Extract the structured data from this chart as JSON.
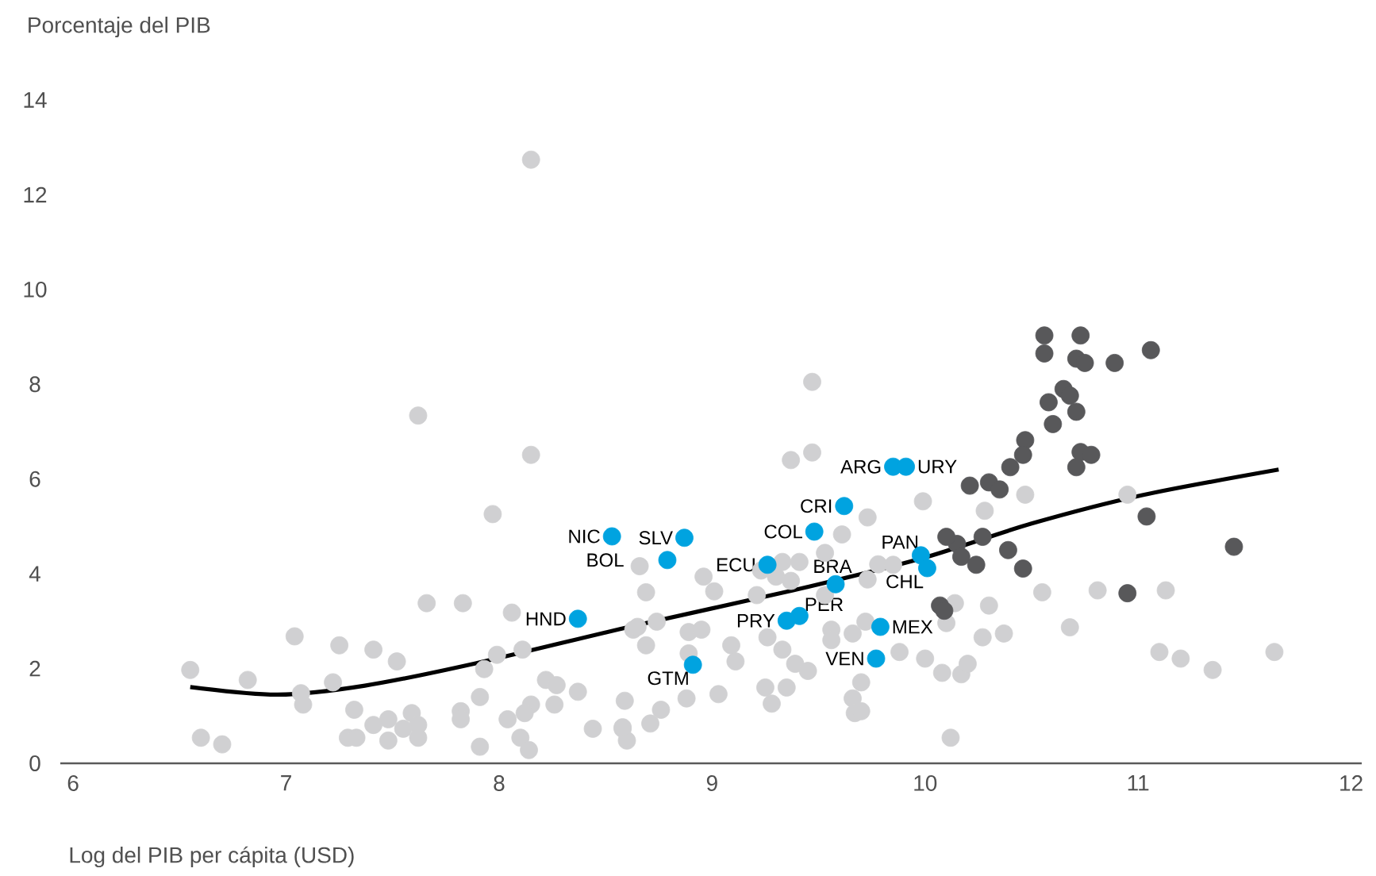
{
  "chart_data": {
    "type": "scatter",
    "xlabel": "Log del PIB per cápita (USD)",
    "ylabel": "Porcentaje del PIB",
    "xlim": [
      5.94,
      12.05
    ],
    "xticks": [
      6,
      7,
      8,
      9,
      10,
      11,
      12
    ],
    "ylim": [
      0,
      14
    ],
    "yticks": [
      0,
      2,
      4,
      6,
      8,
      10,
      12,
      14
    ],
    "grid": false,
    "series": [
      {
        "color": "#d0d0d2",
        "marker": "circle",
        "x": [
          8.15,
          7.62,
          8.15,
          7.97,
          7.66,
          7.83,
          8.06,
          7.04,
          7.25,
          7.41,
          7.52,
          6.55,
          6.82,
          7.22,
          7.99,
          8.11,
          7.93,
          7.07,
          7.08,
          7.32,
          7.91,
          8.22,
          8.27,
          8.37,
          8.59,
          8.26,
          8.15,
          8.12,
          8.04,
          7.82,
          7.82,
          7.59,
          7.62,
          7.55,
          7.48,
          7.41,
          7.48,
          7.62,
          7.29,
          7.33,
          6.6,
          6.7,
          7.91,
          8.1,
          8.14,
          8.44,
          8.58,
          8.6,
          8.63,
          9.47,
          9.37,
          9.47,
          9.99,
          9.73,
          9.61,
          9.53,
          9.78,
          9.33,
          9.41,
          9.23,
          9.3,
          9.37,
          8.96,
          9.01,
          9.21,
          8.69,
          8.66,
          9.53,
          9.73,
          9.85,
          8.65,
          8.74,
          8.69,
          8.89,
          8.95,
          8.89,
          9.09,
          9.11,
          9.26,
          9.33,
          9.39,
          9.45,
          9.56,
          9.56,
          9.66,
          9.72,
          9.88,
          10.0,
          10.08,
          10.17,
          10.2,
          10.27,
          10.37,
          10.1,
          10.14,
          10.3,
          9.03,
          9.25,
          9.35,
          9.28,
          9.7,
          9.66,
          9.67,
          9.7,
          8.88,
          8.76,
          8.71,
          8.58,
          10.12,
          10.28,
          10.47,
          10.55,
          10.95,
          10.81,
          11.13,
          10.68,
          11.1,
          11.2,
          11.35,
          11.64
        ],
        "values": [
          12.74,
          7.34,
          6.51,
          5.26,
          3.38,
          3.38,
          3.18,
          2.68,
          2.49,
          2.4,
          2.15,
          1.97,
          1.76,
          1.71,
          2.29,
          2.4,
          1.99,
          1.48,
          1.24,
          1.13,
          1.4,
          1.76,
          1.65,
          1.51,
          1.32,
          1.24,
          1.24,
          1.06,
          0.93,
          1.1,
          0.93,
          1.06,
          0.81,
          0.73,
          0.93,
          0.81,
          0.48,
          0.54,
          0.54,
          0.54,
          0.54,
          0.4,
          0.35,
          0.54,
          0.28,
          0.73,
          0.73,
          0.48,
          2.82,
          8.05,
          6.4,
          6.56,
          5.53,
          5.19,
          4.83,
          4.44,
          4.2,
          4.25,
          4.25,
          4.07,
          3.94,
          3.85,
          3.94,
          3.63,
          3.55,
          3.61,
          4.16,
          3.55,
          3.88,
          4.19,
          2.88,
          2.99,
          2.49,
          2.77,
          2.82,
          2.32,
          2.49,
          2.15,
          2.66,
          2.4,
          2.1,
          1.95,
          2.82,
          2.6,
          2.74,
          2.99,
          2.35,
          2.21,
          1.91,
          1.88,
          2.1,
          2.66,
          2.74,
          2.96,
          3.38,
          3.33,
          1.46,
          1.6,
          1.6,
          1.26,
          1.71,
          1.37,
          1.06,
          1.1,
          1.37,
          1.13,
          0.84,
          0.76,
          0.54,
          5.33,
          5.67,
          3.61,
          5.67,
          3.65,
          3.65,
          2.87,
          2.35,
          2.21,
          1.97,
          2.35
        ]
      },
      {
        "color": "#58585a",
        "marker": "circle",
        "x": [
          10.56,
          10.73,
          10.56,
          10.71,
          10.75,
          10.89,
          11.06,
          10.65,
          10.68,
          10.58,
          10.71,
          10.6,
          10.47,
          10.46,
          10.73,
          10.78,
          10.71,
          10.4,
          10.3,
          10.35,
          10.21,
          10.27,
          10.15,
          10.17,
          10.24,
          10.39,
          10.46,
          11.04,
          11.45,
          10.95,
          10.1,
          10.07,
          10.09
        ],
        "values": [
          9.03,
          9.03,
          8.65,
          8.54,
          8.45,
          8.45,
          8.72,
          7.9,
          7.76,
          7.62,
          7.42,
          7.16,
          6.82,
          6.51,
          6.57,
          6.51,
          6.25,
          6.25,
          5.93,
          5.78,
          5.86,
          4.78,
          4.63,
          4.36,
          4.19,
          4.5,
          4.11,
          5.21,
          4.57,
          3.59,
          4.78,
          3.33,
          3.22
        ]
      },
      {
        "color": "#00a3e0",
        "marker": "circle",
        "x": [
          9.85,
          9.91,
          9.62,
          9.48,
          8.87,
          8.53,
          8.79,
          9.26,
          9.58,
          9.98,
          10.01,
          9.41,
          9.35,
          9.79,
          9.77,
          8.91,
          8.37
        ],
        "values": [
          6.26,
          6.26,
          5.43,
          4.89,
          4.76,
          4.79,
          4.29,
          4.19,
          3.78,
          4.39,
          4.12,
          3.11,
          3.01,
          2.88,
          2.21,
          2.08,
          3.05
        ]
      },
      {
        "type": "line",
        "color": "#000000",
        "marker": "none",
        "line_style": "solid",
        "x": [
          6.55,
          6.96,
          7.37,
          7.89,
          8.64,
          9.38,
          9.98,
          10.5,
          11.02,
          11.66
        ],
        "values": [
          1.61,
          1.45,
          1.64,
          2.11,
          2.91,
          3.65,
          4.32,
          5.06,
          5.66,
          6.2
        ]
      }
    ],
    "annotations": [
      {
        "text": "ARG",
        "x": 9.85,
        "y": 6.26
      },
      {
        "text": "URY",
        "x": 9.91,
        "y": 6.26
      },
      {
        "text": "CRI",
        "x": 9.62,
        "y": 5.43
      },
      {
        "text": "COL",
        "x": 9.48,
        "y": 4.89
      },
      {
        "text": "SLV",
        "x": 8.87,
        "y": 4.76
      },
      {
        "text": "NIC",
        "x": 8.53,
        "y": 4.79
      },
      {
        "text": "BOL",
        "x": 8.79,
        "y": 4.29
      },
      {
        "text": "ECU",
        "x": 9.26,
        "y": 4.19
      },
      {
        "text": "BRA",
        "x": 9.58,
        "y": 3.78
      },
      {
        "text": "PAN",
        "x": 9.98,
        "y": 4.39
      },
      {
        "text": "CHL",
        "x": 10.01,
        "y": 4.12
      },
      {
        "text": "PER",
        "x": 9.41,
        "y": 3.11
      },
      {
        "text": "PRY",
        "x": 9.35,
        "y": 3.01
      },
      {
        "text": "MEX",
        "x": 9.79,
        "y": 2.88
      },
      {
        "text": "VEN",
        "x": 9.77,
        "y": 2.21
      },
      {
        "text": "GTM",
        "x": 8.91,
        "y": 2.08
      },
      {
        "text": "HND",
        "x": 8.37,
        "y": 3.05
      }
    ]
  }
}
